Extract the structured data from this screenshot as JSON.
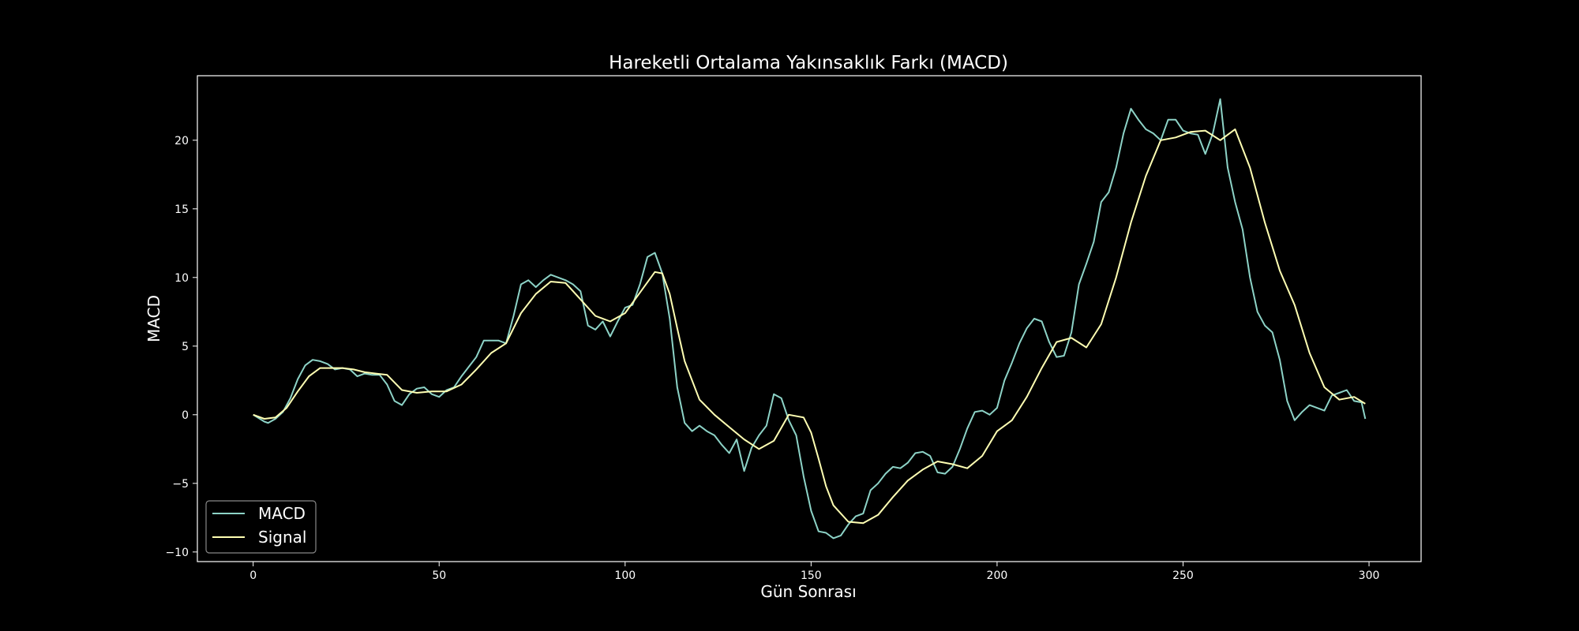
{
  "chart_data": {
    "type": "line",
    "title": "Hareketli Ortalama Yakınsaklık Farkı (MACD)",
    "xlabel": "Gün Sonrası",
    "ylabel": "MACD",
    "xlim": [
      -15,
      314
    ],
    "ylim": [
      -10.7,
      24.7
    ],
    "xticks": [
      0,
      50,
      100,
      150,
      200,
      250,
      300
    ],
    "yticks": [
      -10,
      -5,
      0,
      5,
      10,
      15,
      20
    ],
    "legend": "lower-left",
    "colors": {
      "background": "#000000",
      "axes": "#ffffff",
      "macd": "#8dd3c7",
      "signal": "#ffffb3"
    },
    "series": [
      {
        "name": "MACD",
        "x": [
          0,
          3,
          4,
          6,
          8,
          10,
          12,
          14,
          16,
          18,
          20,
          22,
          24,
          26,
          28,
          30,
          32,
          34,
          36,
          38,
          40,
          42,
          44,
          46,
          48,
          50,
          52,
          54,
          56,
          58,
          60,
          62,
          64,
          66,
          68,
          70,
          72,
          74,
          76,
          78,
          80,
          82,
          84,
          86,
          88,
          90,
          92,
          94,
          96,
          98,
          100,
          102,
          104,
          106,
          108,
          110,
          112,
          114,
          116,
          118,
          120,
          122,
          124,
          126,
          128,
          130,
          132,
          134,
          136,
          138,
          140,
          142,
          144,
          146,
          148,
          150,
          152,
          154,
          156,
          158,
          160,
          162,
          164,
          166,
          168,
          170,
          172,
          174,
          176,
          178,
          180,
          182,
          184,
          186,
          188,
          190,
          192,
          194,
          196,
          198,
          200,
          202,
          204,
          206,
          208,
          210,
          212,
          214,
          216,
          218,
          220,
          222,
          224,
          226,
          228,
          230,
          232,
          234,
          236,
          238,
          240,
          242,
          244,
          246,
          248,
          250,
          252,
          254,
          256,
          258,
          260,
          262,
          264,
          266,
          268,
          270,
          272,
          274,
          276,
          278,
          280,
          282,
          284,
          286,
          288,
          290,
          292,
          294,
          296,
          298,
          299
        ],
        "values": [
          0,
          -0.5,
          -0.6,
          -0.3,
          0.2,
          1.2,
          2.6,
          3.6,
          4.0,
          3.9,
          3.7,
          3.3,
          3.4,
          3.3,
          2.8,
          3.0,
          2.9,
          2.9,
          2.2,
          1.0,
          0.7,
          1.5,
          1.9,
          2.0,
          1.5,
          1.3,
          1.8,
          2.0,
          2.8,
          3.5,
          4.2,
          5.4,
          5.4,
          5.4,
          5.2,
          7.2,
          9.5,
          9.8,
          9.3,
          9.8,
          10.2,
          10.0,
          9.8,
          9.5,
          9.0,
          6.5,
          6.2,
          6.8,
          5.7,
          6.8,
          7.8,
          8.0,
          9.5,
          11.5,
          11.8,
          10.3,
          7.0,
          2.0,
          -0.6,
          -1.2,
          -0.8,
          -1.2,
          -1.5,
          -2.2,
          -2.8,
          -1.8,
          -4.1,
          -2.4,
          -1.5,
          -0.8,
          1.5,
          1.2,
          -0.4,
          -1.5,
          -4.5,
          -7.0,
          -8.5,
          -8.6,
          -9.0,
          -8.8,
          -8.0,
          -7.4,
          -7.2,
          -5.5,
          -5.0,
          -4.3,
          -3.8,
          -3.9,
          -3.5,
          -2.8,
          -2.7,
          -3.0,
          -4.2,
          -4.3,
          -3.8,
          -2.5,
          -1.0,
          0.2,
          0.3,
          0.0,
          0.5,
          2.5,
          3.8,
          5.2,
          6.3,
          7.0,
          6.8,
          5.3,
          4.2,
          4.3,
          6.0,
          9.5,
          11.0,
          12.6,
          15.5,
          16.2,
          18.0,
          20.5,
          22.3,
          21.5,
          20.8,
          20.5,
          20.0,
          21.5,
          21.5,
          20.7,
          20.5,
          20.4,
          19.0,
          20.5,
          23.0,
          18.0,
          15.5,
          13.5,
          10.0,
          7.5,
          6.5,
          6.0,
          4.0,
          1.0,
          -0.4,
          0.2,
          0.7,
          0.5,
          0.3,
          1.4,
          1.6,
          1.8,
          1.0,
          0.9,
          -0.3
        ]
      },
      {
        "name": "Signal",
        "x": [
          0,
          3,
          6,
          9,
          12,
          15,
          18,
          21,
          24,
          27,
          30,
          33,
          36,
          40,
          44,
          48,
          52,
          56,
          60,
          64,
          68,
          72,
          76,
          80,
          84,
          88,
          92,
          96,
          100,
          104,
          108,
          110,
          112,
          114,
          116,
          120,
          124,
          128,
          132,
          136,
          140,
          144,
          148,
          150,
          152,
          154,
          156,
          160,
          164,
          168,
          172,
          176,
          180,
          184,
          188,
          192,
          196,
          200,
          204,
          208,
          212,
          216,
          220,
          224,
          228,
          232,
          236,
          240,
          244,
          248,
          252,
          256,
          260,
          264,
          268,
          272,
          276,
          280,
          284,
          288,
          292,
          296,
          299
        ],
        "values": [
          0,
          -0.3,
          -0.2,
          0.5,
          1.7,
          2.8,
          3.4,
          3.4,
          3.4,
          3.3,
          3.1,
          3.0,
          2.9,
          1.8,
          1.6,
          1.7,
          1.7,
          2.2,
          3.3,
          4.5,
          5.2,
          7.4,
          8.8,
          9.7,
          9.6,
          8.4,
          7.2,
          6.8,
          7.4,
          8.9,
          10.4,
          10.3,
          8.8,
          6.3,
          3.9,
          1.1,
          0.0,
          -0.9,
          -1.8,
          -2.5,
          -1.9,
          0.0,
          -0.2,
          -1.3,
          -3.2,
          -5.2,
          -6.6,
          -7.8,
          -7.9,
          -7.3,
          -6.0,
          -4.8,
          -4.0,
          -3.4,
          -3.6,
          -3.9,
          -3.0,
          -1.2,
          -0.4,
          1.3,
          3.4,
          5.3,
          5.6,
          4.9,
          6.6,
          10.0,
          14.0,
          17.4,
          20.0,
          20.2,
          20.6,
          20.7,
          20.0,
          20.8,
          18.0,
          14.0,
          10.5,
          8.0,
          4.5,
          2.0,
          1.1,
          1.3,
          0.8
        ]
      }
    ]
  }
}
